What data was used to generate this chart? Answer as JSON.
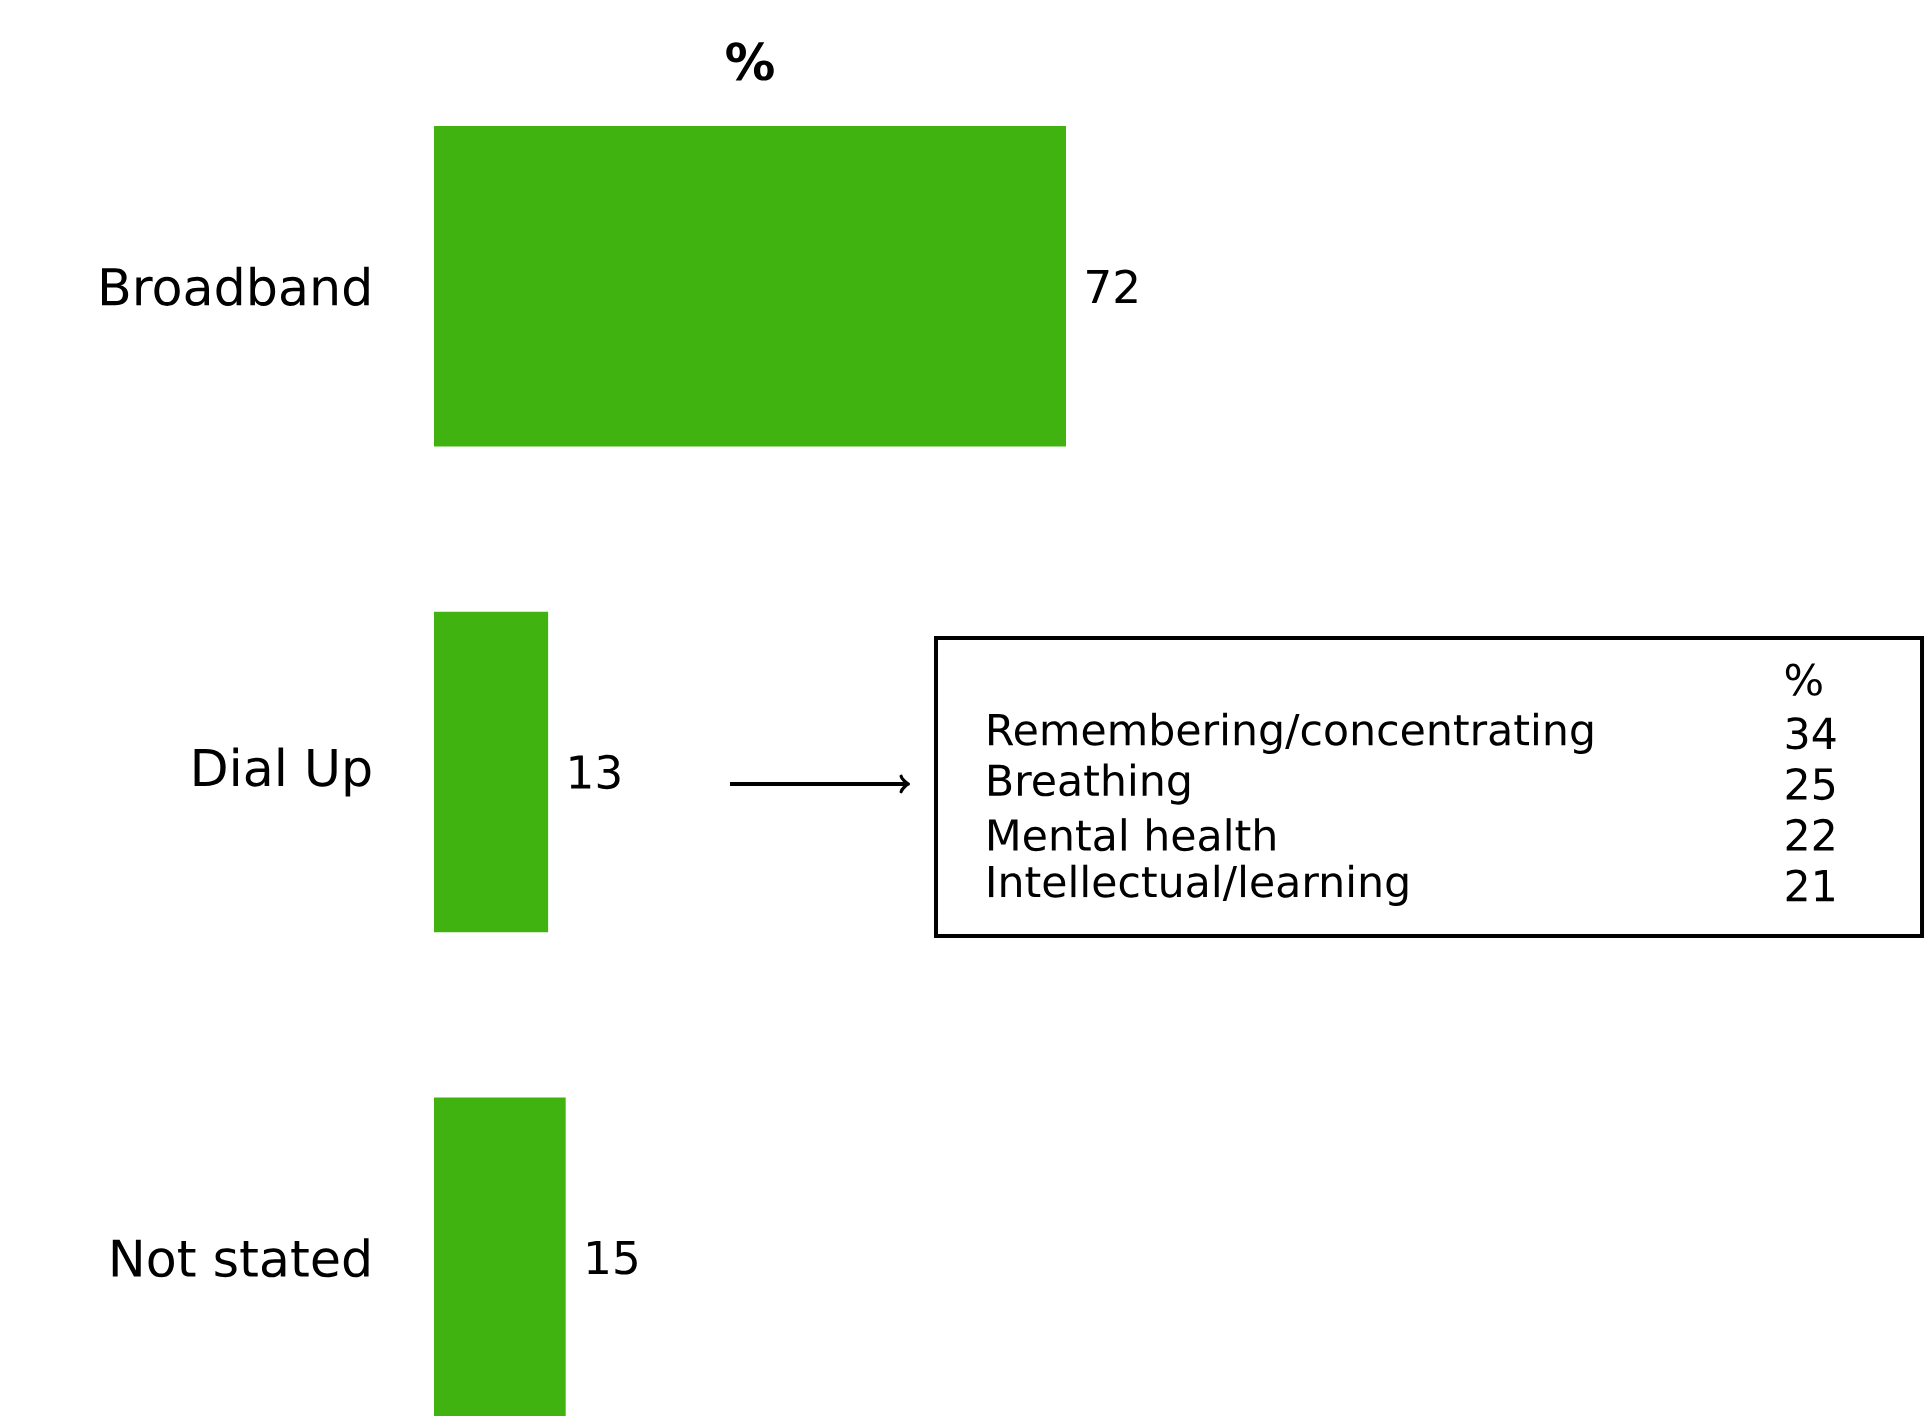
{
  "chart_data": [
    {
      "type": "bar",
      "orientation": "horizontal",
      "title": "%",
      "categories": [
        "Broadband",
        "Dial Up",
        "Not stated"
      ],
      "values": [
        72,
        13,
        15
      ],
      "color": "#41b311",
      "data_labels": true
    },
    {
      "type": "other",
      "title": "%",
      "categories": [
        "Remembering/concentrating",
        "Breathing",
        "Mental health",
        "Intellectual/learning"
      ],
      "values": [
        34,
        25,
        22,
        21
      ],
      "data_labels": true
    }
  ]
}
